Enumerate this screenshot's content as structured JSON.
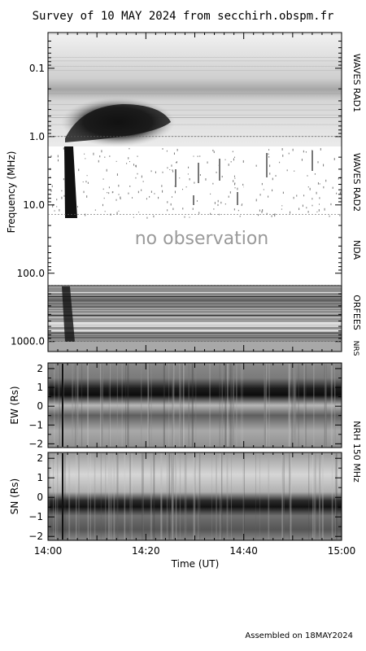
{
  "title": "Survey of 10 MAY 2024 from secchirh.obspm.fr",
  "footer": "Assembled on 18MAY2024",
  "no_observation_text": "no observation",
  "colors": {
    "ink": "#000000",
    "gray_text": "#9a9a9a",
    "background": "#ffffff"
  },
  "chart_data": [
    {
      "type": "heatmap",
      "name": "spectrum",
      "ylabel": "Frequency (MHz)",
      "yscale": "log",
      "ylim": [
        0.03,
        1400
      ],
      "y_ticks": [
        0.1,
        1.0,
        10.0,
        100.0,
        1000.0
      ],
      "y_tick_labels": [
        "0.1",
        "1.0",
        "10.0",
        "100.0",
        "1000.0"
      ],
      "xlim": [
        "14:00",
        "15:00"
      ],
      "bands": [
        {
          "label": "WAVES RAD1",
          "range_mhz": [
            0.02,
            1.0
          ]
        },
        {
          "label": "WAVES RAD2",
          "range_mhz": [
            1.0,
            13.8
          ]
        },
        {
          "label": "NDA",
          "range_mhz": [
            13.8,
            150
          ],
          "status": "no observation"
        },
        {
          "label": "ORFEES",
          "range_mhz": [
            150,
            1000
          ]
        },
        {
          "label": "NRS",
          "range_mhz": [
            1000,
            1400
          ]
        }
      ]
    },
    {
      "type": "heatmap",
      "name": "ew",
      "ylabel": "EW (Rs)",
      "ylim": [
        -2.2,
        2.3
      ],
      "y_ticks": [
        2,
        1,
        0,
        -1,
        -2
      ],
      "y_tick_labels": [
        "2",
        "1",
        "0",
        "−1",
        "−2"
      ],
      "xlim": [
        "14:00",
        "15:00"
      ]
    },
    {
      "type": "heatmap",
      "name": "sn",
      "ylabel": "SN (Rs)",
      "ylim": [
        -2.2,
        2.3
      ],
      "y_ticks": [
        2,
        1,
        0,
        -1,
        -2
      ],
      "y_tick_labels": [
        "2",
        "1",
        "0",
        "−1",
        "−2"
      ],
      "xlim": [
        "14:00",
        "15:00"
      ],
      "xlabel": "Time (UT)",
      "x_ticks": [
        "14:00",
        "14:20",
        "14:40",
        "15:00"
      ]
    }
  ],
  "nrh_label": "NRH 150 MHz"
}
